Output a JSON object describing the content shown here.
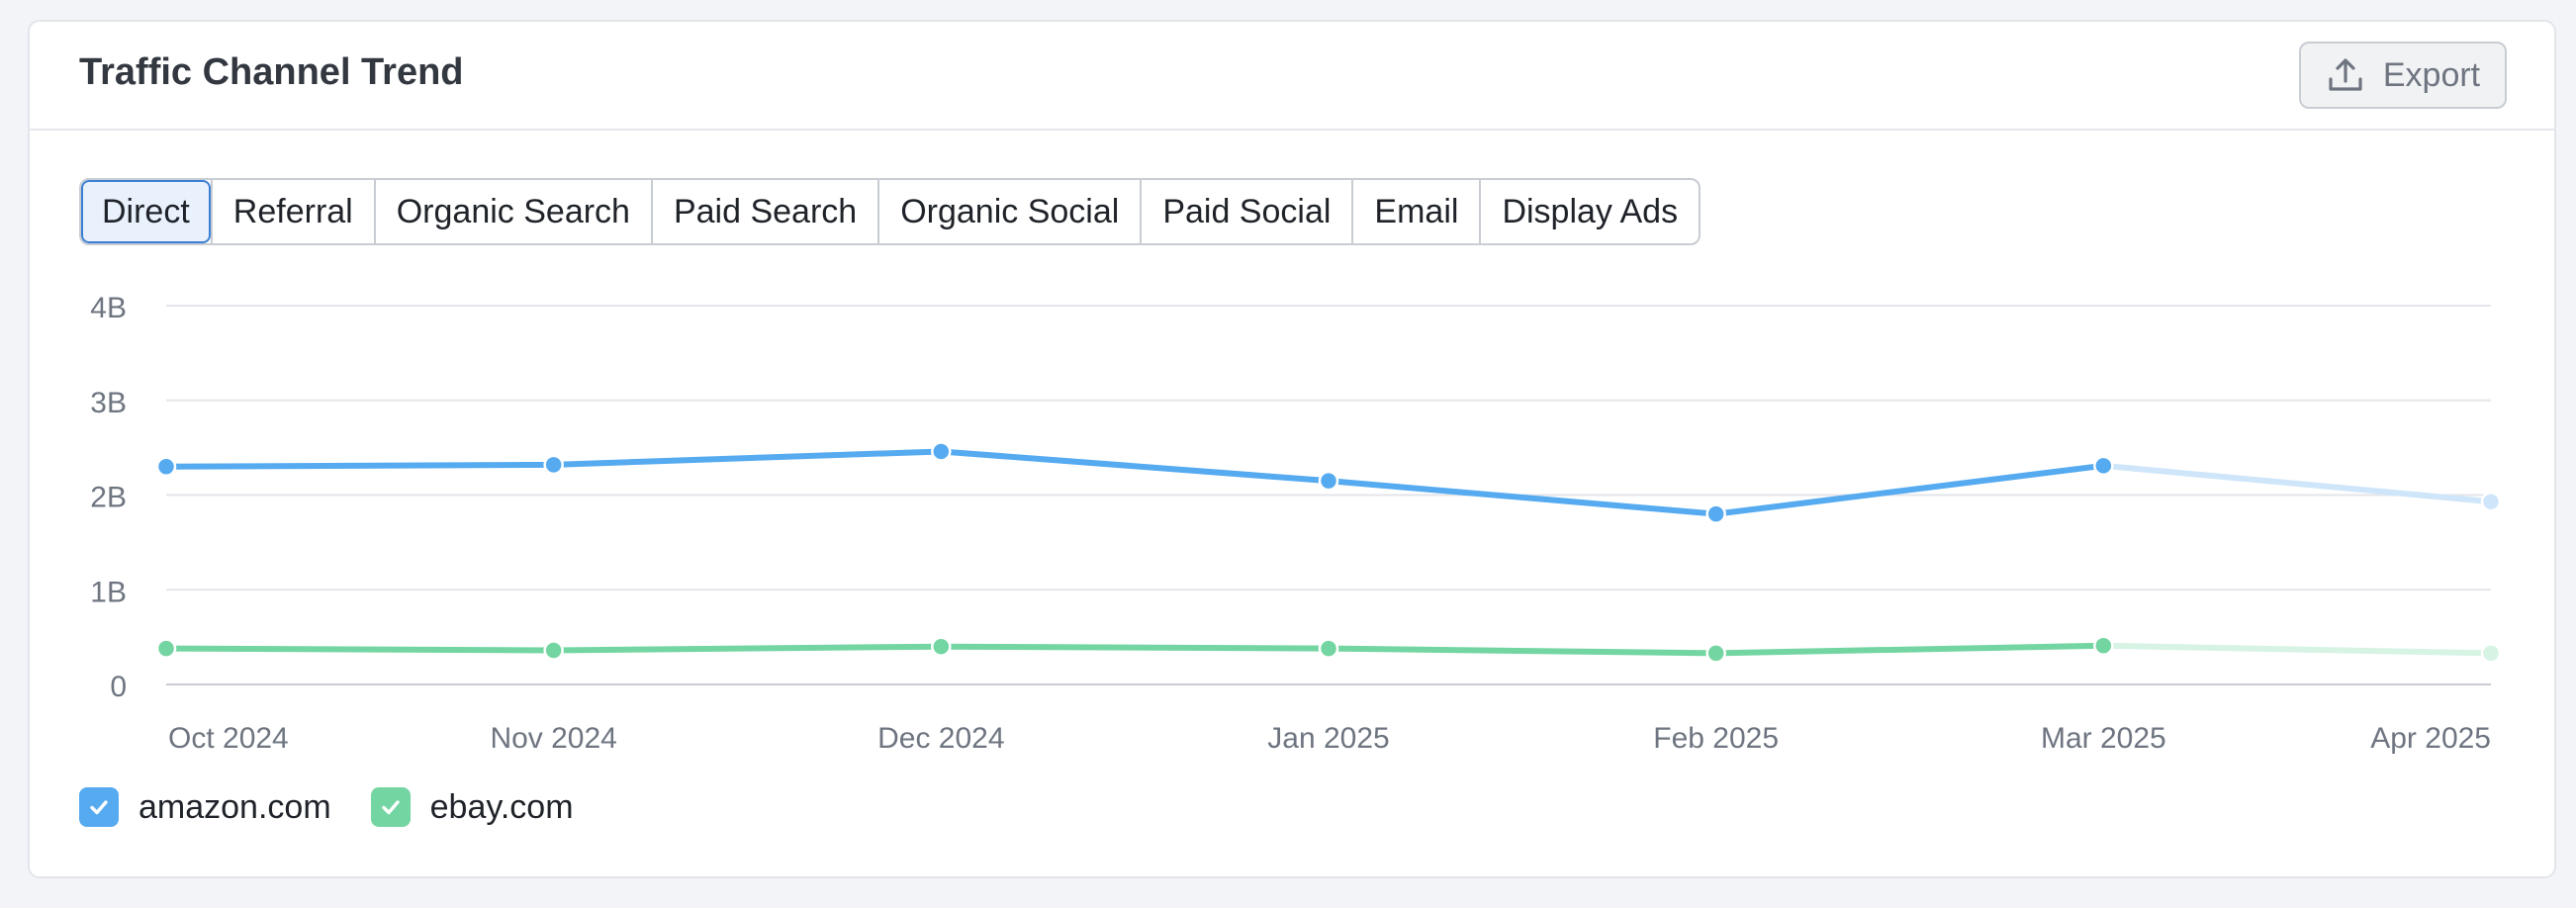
{
  "card": {
    "title": "Traffic Channel Trend",
    "export_label": "Export",
    "export_icon": "upload-icon"
  },
  "tabs": [
    {
      "label": "Direct",
      "active": true
    },
    {
      "label": "Referral",
      "active": false
    },
    {
      "label": "Organic Search",
      "active": false
    },
    {
      "label": "Paid Search",
      "active": false
    },
    {
      "label": "Organic Social",
      "active": false
    },
    {
      "label": "Paid Social",
      "active": false
    },
    {
      "label": "Email",
      "active": false
    },
    {
      "label": "Display Ads",
      "active": false
    }
  ],
  "colors": {
    "amazon": "#55aaf0",
    "amazon_faded": "#cfe6fa",
    "ebay": "#73d5a1",
    "ebay_faded": "#d6f3e4",
    "grid": "#e3e5ea",
    "axis_text": "#6e7580"
  },
  "chart_data": {
    "type": "line",
    "categories": [
      "Oct 2024",
      "Nov 2024",
      "Dec 2024",
      "Jan 2025",
      "Feb 2025",
      "Mar 2025",
      "Apr 2025"
    ],
    "y_ticks": [
      "0",
      "1B",
      "2B",
      "3B",
      "4B"
    ],
    "ylim": [
      0,
      4000000000
    ],
    "grid": true,
    "legend_position": "bottom-left",
    "series": [
      {
        "name": "amazon.com",
        "color": "#55aaf0",
        "faded_color": "#cfe6fa",
        "values": [
          2300000000,
          2320000000,
          2460000000,
          2150000000,
          1800000000,
          2310000000,
          1930000000
        ],
        "faded_from_index": 5
      },
      {
        "name": "ebay.com",
        "color": "#73d5a1",
        "faded_color": "#d6f3e4",
        "values": [
          380000000,
          360000000,
          400000000,
          380000000,
          330000000,
          410000000,
          330000000
        ],
        "faded_from_index": 5
      }
    ]
  }
}
